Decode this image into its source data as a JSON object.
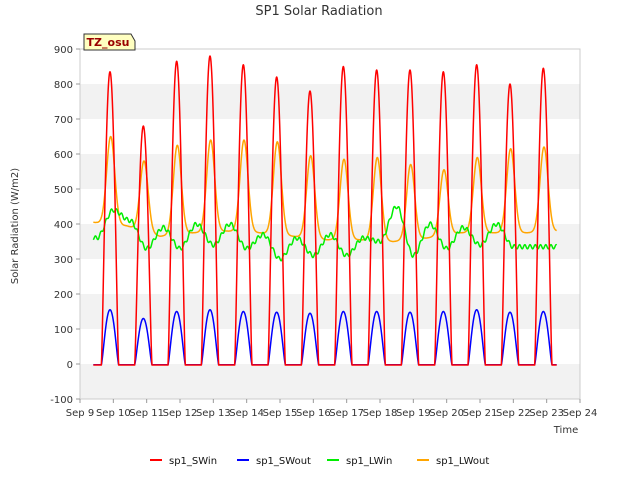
{
  "chart_data": {
    "type": "line",
    "title": "SP1 Solar Radiation",
    "xlabel": "Time",
    "ylabel": "Solar Radiation (W/m2)",
    "badge": "TZ_osu",
    "ylim": [
      -100,
      900
    ],
    "yticks": [
      -100,
      0,
      100,
      200,
      300,
      400,
      500,
      600,
      700,
      800,
      900
    ],
    "xlim": [
      9,
      24
    ],
    "xticks": [
      9,
      10,
      11,
      12,
      13,
      14,
      15,
      16,
      17,
      18,
      19,
      20,
      21,
      22,
      23,
      24
    ],
    "xtick_labels": [
      "Sep 9",
      "Sep 10",
      "Sep 11",
      "Sep 12",
      "Sep 13",
      "Sep 14",
      "Sep 15",
      "Sep 16",
      "Sep 17",
      "Sep 18",
      "Sep 19",
      "Sep 20",
      "Sep 21",
      "Sep 22",
      "Sep 23",
      "Sep 24"
    ],
    "grid": "horizontal bands",
    "legend_position": "bottom",
    "days": [
      9.9,
      10.9,
      11.9,
      12.9,
      13.9,
      14.9,
      15.9,
      16.9,
      17.9,
      18.9,
      19.9,
      20.9,
      21.9,
      22.9
    ],
    "series": [
      {
        "name": "sp1_SWin",
        "color": "#ff0000",
        "daily_peaks": [
          835,
          680,
          865,
          880,
          855,
          820,
          780,
          850,
          840,
          840,
          835,
          855,
          800,
          845
        ],
        "night_value": -3
      },
      {
        "name": "sp1_SWout",
        "color": "#0000ff",
        "daily_peaks": [
          155,
          130,
          150,
          155,
          150,
          148,
          145,
          150,
          150,
          148,
          150,
          155,
          148,
          150
        ],
        "night_value": -2
      },
      {
        "name": "sp1_LWin",
        "color": "#00ee00",
        "day_values": [
          360,
          440,
          410,
          330,
          390,
          330,
          400,
          340,
          400,
          330,
          370,
          300,
          360,
          310,
          370,
          310,
          360,
          350,
          450,
          310,
          400,
          330,
          390,
          340,
          400,
          335
        ]
      },
      {
        "name": "sp1_LWout",
        "color": "#ffa500",
        "daily_peaks": [
          650,
          580,
          625,
          640,
          640,
          635,
          595,
          585,
          590,
          570,
          555,
          590,
          615,
          620
        ],
        "night_values": [
          405,
          395,
          365,
          375,
          380,
          375,
          365,
          355,
          355,
          350,
          360,
          375,
          375,
          375,
          380
        ]
      }
    ]
  }
}
